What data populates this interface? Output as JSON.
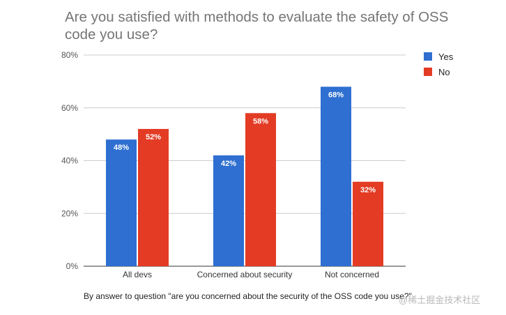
{
  "chart_data": {
    "type": "bar",
    "title": "Are you satisfied with methods to evaluate the safety of OSS code you use?",
    "categories": [
      "All devs",
      "Concerned about security",
      "Not concerned"
    ],
    "series": [
      {
        "name": "Yes",
        "values": [
          48,
          42,
          68
        ],
        "color": "#2e6fd1"
      },
      {
        "name": "No",
        "values": [
          52,
          58,
          32
        ],
        "color": "#e33b24"
      }
    ],
    "data_labels": [
      [
        "48%",
        "42%",
        "68%"
      ],
      [
        "52%",
        "58%",
        "32%"
      ]
    ],
    "ylim": [
      0,
      80
    ],
    "yticks": [
      "0%",
      "20%",
      "40%",
      "60%",
      "80%"
    ],
    "grid": true,
    "legend_position": "top-right",
    "caption": "By answer to question \"are you concerned about the security of the OSS code you use?\""
  },
  "watermark": "@稀土掘金技术社区"
}
